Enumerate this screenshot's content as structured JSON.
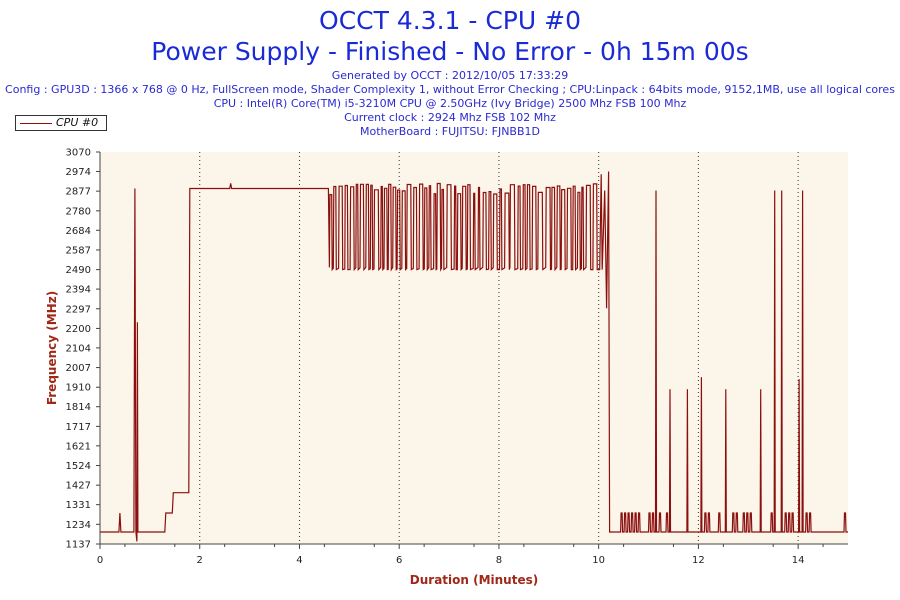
{
  "header": {
    "title": "OCCT 4.3.1 - CPU #0",
    "subtitle": "Power Supply - Finished - No Error - 0h 15m 00s",
    "info": [
      "Generated by OCCT : 2012/10/05 17:33:29",
      "Config : GPU3D : 1366 x 768 @ 0 Hz, FullScreen mode, Shader Complexity 1, without Error Checking ; CPU:Linpack : 64bits mode, 9152,1MB, use all logical cores",
      "CPU : Intel(R) Core(TM) i5-3210M CPU @ 2.50GHz (Ivy Bridge) 2500 Mhz FSB 100 Mhz",
      "Current clock : 2924 Mhz FSB 102 Mhz",
      "MotherBoard : FUJITSU: FJNBB1D"
    ]
  },
  "colors": {
    "line": "#8b0f0f",
    "plot_bg": "#fbf6e9",
    "axis_label": "#a02818",
    "title": "#1a2bd6"
  },
  "chart_data": {
    "type": "line",
    "title": "OCCT 4.3.1 - CPU #0",
    "xlabel": "Duration (Minutes)",
    "ylabel": "Frequency (MHz)",
    "xlim": [
      0,
      15
    ],
    "ylim": [
      1137,
      3070
    ],
    "x_ticks": [
      0,
      2,
      4,
      6,
      8,
      10,
      12,
      14
    ],
    "y_ticks": [
      1137,
      1234,
      1331,
      1427,
      1524,
      1621,
      1717,
      1814,
      1910,
      2007,
      2104,
      2200,
      2297,
      2394,
      2490,
      2587,
      2684,
      2780,
      2877,
      2974,
      3070
    ],
    "grid": "vertical dotted",
    "legend": "top-left",
    "series": [
      {
        "name": "CPU #0",
        "x": [
          0.0,
          0.38,
          0.4,
          0.42,
          0.44,
          0.6,
          0.68,
          0.7,
          0.72,
          0.74,
          0.75,
          0.76,
          1.1,
          1.3,
          1.32,
          1.45,
          1.47,
          1.78,
          1.8,
          1.9,
          2.6,
          2.62,
          2.64,
          4.58
        ],
        "values": [
          1196,
          1196,
          1290,
          1196,
          1196,
          1196,
          1196,
          2890,
          1196,
          1150,
          2230,
          1196,
          1196,
          1196,
          1290,
          1290,
          1390,
          1390,
          2890,
          2890,
          2890,
          2915,
          2890,
          2890
        ]
      }
    ]
  }
}
